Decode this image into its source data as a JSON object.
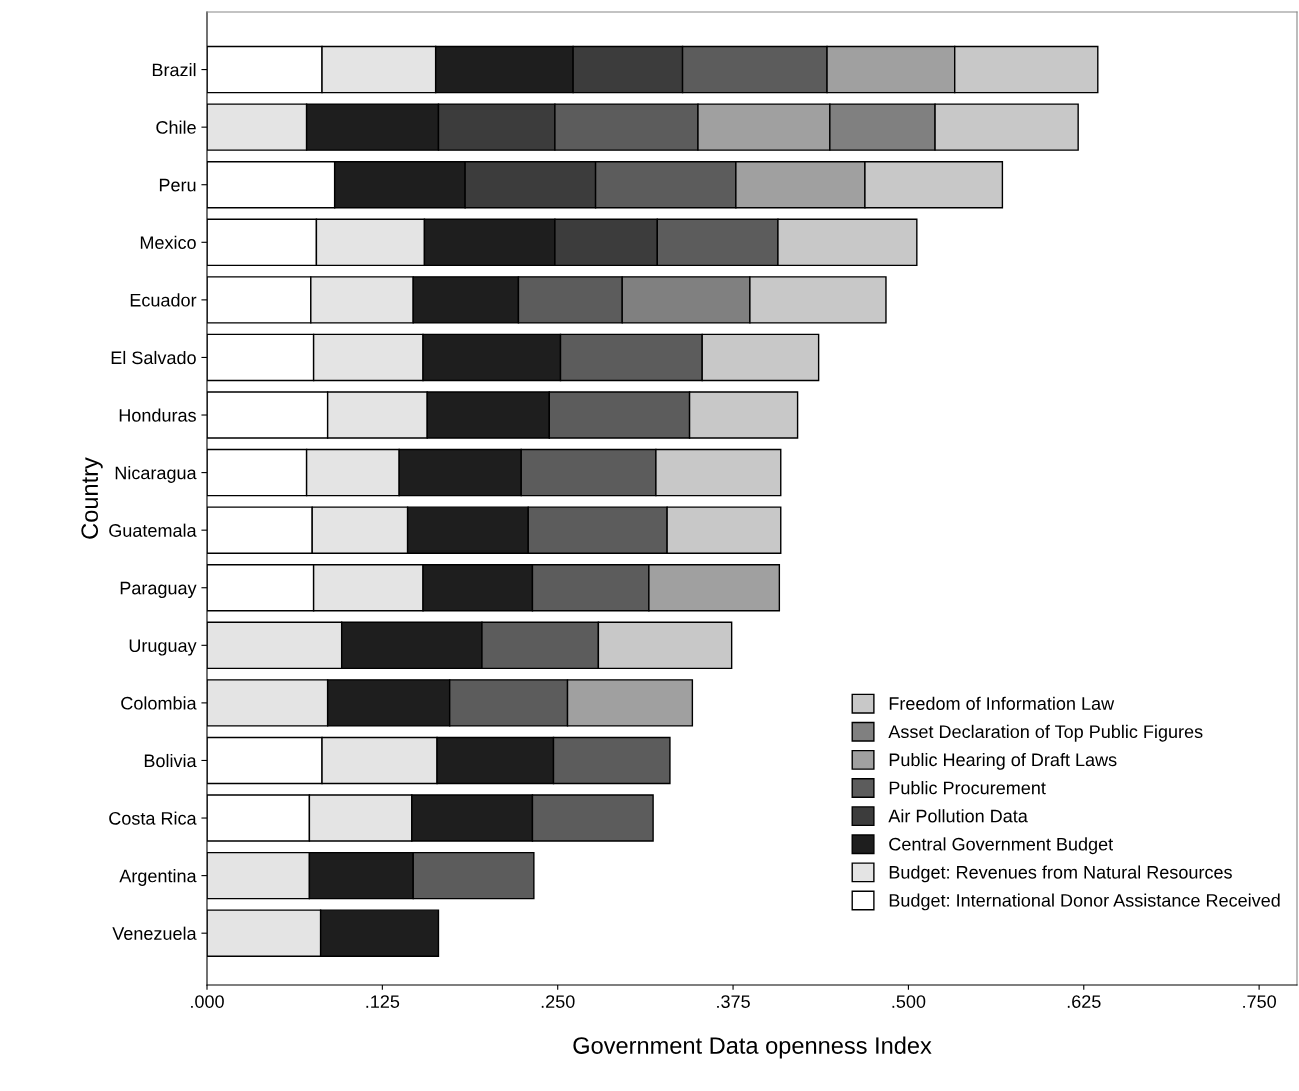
{
  "chart_data": {
    "type": "bar",
    "orientation": "horizontal",
    "stacked": true,
    "xlabel": "Government Data openness Index",
    "ylabel": "Country",
    "categories": [
      "Brazil",
      "Chile",
      "Peru",
      "Mexico",
      "Ecuador",
      "El Salvado",
      "Honduras",
      "Nicaragua",
      "Guatemala",
      "Paraguay",
      "Uruguay",
      "Colombia",
      "Bolivia",
      "Costa Rica",
      "Argentina",
      "Venezuela"
    ],
    "xlim": [
      0,
      0.777
    ],
    "xticks": [
      {
        "value": 0,
        "label": ".000"
      },
      {
        "value": 0.125,
        "label": ".125"
      },
      {
        "value": 0.25,
        "label": ".250"
      },
      {
        "value": 0.375,
        "label": ".375"
      },
      {
        "value": 0.5,
        "label": ".500"
      },
      {
        "value": 0.625,
        "label": ".625"
      },
      {
        "value": 0.75,
        "label": ".750"
      }
    ],
    "grid": false,
    "legend": "bottom right",
    "series": [
      {
        "name": "Budget: International Donor Assistance Received",
        "color": "#ffffff",
        "values": [
          0.082,
          null,
          0.091,
          0.078,
          0.074,
          0.076,
          0.086,
          0.071,
          0.075,
          0.076,
          null,
          null,
          0.082,
          0.073,
          null,
          null
        ]
      },
      {
        "name": "Budget: Revenues from Natural Resources",
        "color": "#e4e4e4",
        "values": [
          0.081,
          0.071,
          null,
          0.077,
          0.073,
          0.078,
          0.071,
          0.066,
          0.068,
          0.078,
          0.096,
          0.086,
          0.082,
          0.073,
          0.073,
          0.081
        ]
      },
      {
        "name": "Central Government Budget",
        "color": "#1e1e1e",
        "values": [
          0.098,
          0.094,
          0.093,
          0.093,
          0.075,
          0.098,
          0.087,
          0.087,
          0.086,
          0.078,
          0.1,
          0.087,
          0.083,
          0.086,
          0.074,
          0.084
        ]
      },
      {
        "name": "Air Pollution Data",
        "color": "#3c3c3c",
        "values": [
          0.078,
          0.083,
          0.093,
          0.073,
          null,
          null,
          null,
          null,
          null,
          null,
          null,
          null,
          null,
          null,
          null,
          null
        ]
      },
      {
        "name": "Public Procurement",
        "color": "#5c5c5c",
        "values": [
          0.103,
          0.102,
          0.1,
          0.086,
          0.074,
          0.101,
          0.1,
          0.096,
          0.099,
          0.083,
          0.083,
          0.084,
          0.083,
          0.086,
          0.086,
          null
        ]
      },
      {
        "name": "Public Hearing of Draft Laws",
        "color": "#a0a0a0",
        "values": [
          0.091,
          0.094,
          0.092,
          null,
          null,
          null,
          null,
          null,
          null,
          0.093,
          null,
          0.089,
          null,
          null,
          null,
          null
        ]
      },
      {
        "name": "Asset Declaration of Top Public Figures",
        "color": "#808080",
        "values": [
          null,
          0.075,
          null,
          null,
          0.091,
          null,
          null,
          null,
          null,
          null,
          null,
          null,
          null,
          null,
          null,
          null
        ]
      },
      {
        "name": "Freedom of Information Law",
        "color": "#c8c8c8",
        "values": [
          0.102,
          0.102,
          0.098,
          0.099,
          0.097,
          0.083,
          0.077,
          0.089,
          0.081,
          null,
          0.095,
          null,
          null,
          null,
          null,
          null
        ]
      }
    ]
  }
}
